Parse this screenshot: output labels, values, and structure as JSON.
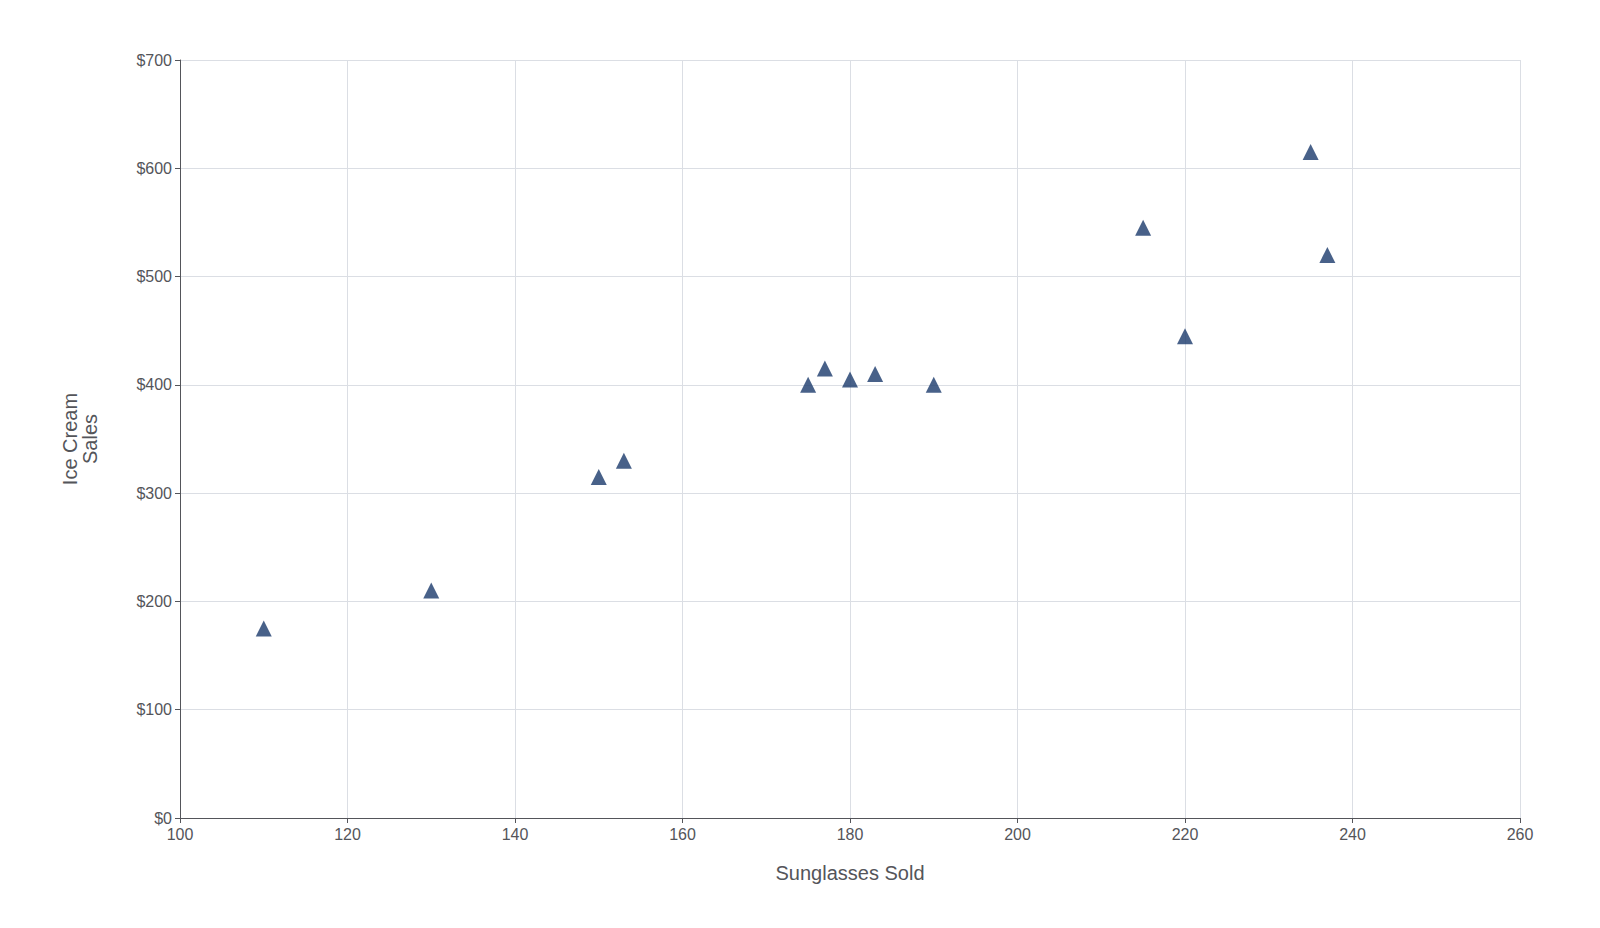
{
  "chart_data": {
    "type": "scatter",
    "x": [
      110,
      130,
      150,
      153,
      175,
      177,
      180,
      183,
      190,
      215,
      220,
      235,
      237
    ],
    "y": [
      175,
      210,
      315,
      330,
      400,
      415,
      405,
      410,
      400,
      545,
      445,
      615,
      520
    ],
    "color": "#1a3a6b",
    "marker": "triangle",
    "xlabel": "Sunglasses Sold",
    "ylabel": "Ice Cream\nSales",
    "xlim": [
      100,
      260
    ],
    "ylim": [
      0,
      700
    ],
    "xticks": [
      100,
      120,
      140,
      160,
      180,
      200,
      220,
      240,
      260
    ],
    "yticks": [
      {
        "value": 0,
        "label": "$0"
      },
      {
        "value": 100,
        "label": "$100"
      },
      {
        "value": 200,
        "label": "$200"
      },
      {
        "value": 300,
        "label": "$300"
      },
      {
        "value": 400,
        "label": "$400"
      },
      {
        "value": 500,
        "label": "$500"
      },
      {
        "value": 600,
        "label": "$600"
      },
      {
        "value": 700,
        "label": "$700"
      }
    ],
    "grid": true
  }
}
